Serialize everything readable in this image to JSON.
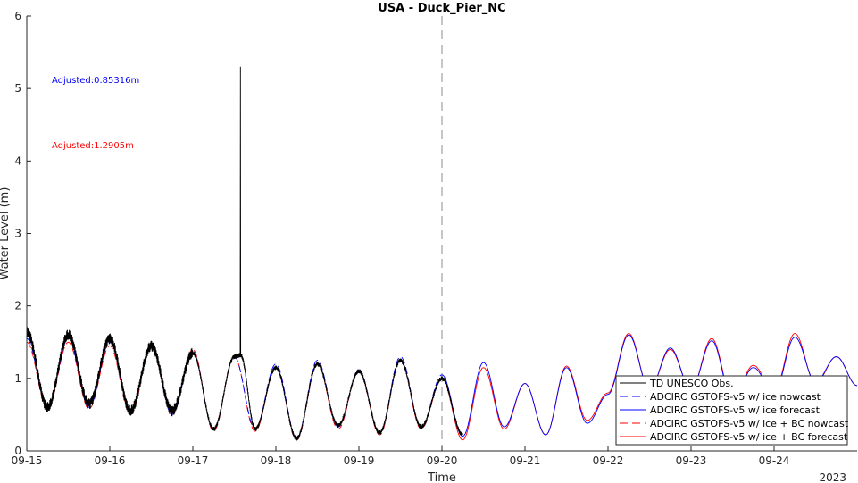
{
  "chart_data": {
    "type": "line",
    "title": "USA - Duck_Pier_NC",
    "xlabel": "Time",
    "ylabel": "Water Level (m)",
    "year_label": "2023",
    "xlim": [
      "2023-09-15",
      "2023-09-25"
    ],
    "ylim": [
      0,
      6
    ],
    "x_tick_labels": [
      "09-15",
      "09-16",
      "09-17",
      "09-18",
      "09-19",
      "09-20",
      "09-21",
      "09-22",
      "09-23",
      "09-24"
    ],
    "y_tick_labels": [
      "0",
      "1",
      "2",
      "3",
      "4",
      "5",
      "6"
    ],
    "nowcast_forecast_divider": "2023-09-20T00:00",
    "grid": false,
    "legend_position": "bottom-right",
    "annotations": [
      {
        "text": "Adjusted:0.85316m",
        "color": "#0000ff"
      },
      {
        "text": "Adjusted:1.2905m",
        "color": "#ff0000"
      }
    ],
    "series": [
      {
        "name": "TD UNESCO Obs.",
        "color": "#000000",
        "style": "solid",
        "x": [
          "2023-09-15T00:00",
          "2023-09-15T06:00",
          "2023-09-15T12:00",
          "2023-09-15T18:00",
          "2023-09-16T00:00",
          "2023-09-16T06:00",
          "2023-09-16T12:00",
          "2023-09-16T18:00",
          "2023-09-17T00:00",
          "2023-09-17T06:00",
          "2023-09-17T12:00",
          "2023-09-17T13:40",
          "2023-09-17T13:45",
          "2023-09-17T13:50",
          "2023-09-17T18:00",
          "2023-09-18T00:00",
          "2023-09-18T06:00",
          "2023-09-18T12:00",
          "2023-09-18T18:00",
          "2023-09-19T00:00",
          "2023-09-19T06:00",
          "2023-09-19T12:00",
          "2023-09-19T18:00",
          "2023-09-20T00:00",
          "2023-09-20T06:00"
        ],
        "y": [
          1.65,
          0.6,
          1.6,
          0.65,
          1.55,
          0.55,
          1.45,
          0.55,
          1.35,
          0.3,
          1.3,
          1.32,
          5.3,
          1.32,
          0.3,
          1.15,
          0.17,
          1.2,
          0.35,
          1.1,
          0.25,
          1.25,
          0.33,
          1.0,
          0.22
        ]
      },
      {
        "name": "ADCIRC GSTOFS-v5 w/ ice nowcast",
        "color": "#0000ff",
        "style": "dashed",
        "x": [
          "2023-09-15T00:00",
          "2023-09-15T06:00",
          "2023-09-15T12:00",
          "2023-09-15T18:00",
          "2023-09-16T00:00",
          "2023-09-16T06:00",
          "2023-09-16T12:00",
          "2023-09-16T18:00",
          "2023-09-17T00:00",
          "2023-09-17T06:00",
          "2023-09-17T12:00",
          "2023-09-17T18:00",
          "2023-09-18T00:00",
          "2023-09-18T06:00",
          "2023-09-18T12:00",
          "2023-09-18T18:00",
          "2023-09-19T00:00",
          "2023-09-19T06:00",
          "2023-09-19T12:00",
          "2023-09-19T18:00",
          "2023-09-20T00:00"
        ],
        "y": [
          1.55,
          0.6,
          1.55,
          0.6,
          1.5,
          0.55,
          1.45,
          0.5,
          1.35,
          0.3,
          1.3,
          0.3,
          1.2,
          0.18,
          1.25,
          0.33,
          1.12,
          0.25,
          1.3,
          0.33,
          1.05
        ]
      },
      {
        "name": "ADCIRC GSTOFS-v5 w/ ice forecast",
        "color": "#0000ff",
        "style": "solid",
        "x": [
          "2023-09-20T00:00",
          "2023-09-20T06:00",
          "2023-09-20T12:00",
          "2023-09-20T18:00",
          "2023-09-21T00:00",
          "2023-09-21T06:00",
          "2023-09-21T12:00",
          "2023-09-21T18:00",
          "2023-09-22T00:00",
          "2023-09-22T06:00",
          "2023-09-22T12:00",
          "2023-09-22T18:00",
          "2023-09-23T00:00",
          "2023-09-23T06:00",
          "2023-09-23T12:00",
          "2023-09-23T18:00",
          "2023-09-24T00:00",
          "2023-09-24T06:00",
          "2023-09-24T12:00",
          "2023-09-24T18:00",
          "2023-09-25T00:00"
        ],
        "y": [
          1.05,
          0.2,
          1.22,
          0.33,
          0.93,
          0.22,
          1.15,
          0.38,
          0.78,
          1.6,
          0.85,
          1.42,
          0.85,
          1.52,
          0.7,
          1.15,
          0.8,
          1.57,
          0.95,
          1.3,
          0.9
        ]
      },
      {
        "name": "ADCIRC GSTOFS-v5 w/ ice + BC nowcast",
        "color": "#ff0000",
        "style": "dashed",
        "x": [
          "2023-09-15T00:00",
          "2023-09-15T06:00",
          "2023-09-15T12:00",
          "2023-09-15T18:00",
          "2023-09-16T00:00",
          "2023-09-16T06:00",
          "2023-09-16T12:00",
          "2023-09-16T18:00",
          "2023-09-17T00:00",
          "2023-09-17T06:00",
          "2023-09-17T12:00",
          "2023-09-17T18:00",
          "2023-09-18T00:00",
          "2023-09-18T06:00",
          "2023-09-18T12:00",
          "2023-09-18T18:00",
          "2023-09-19T00:00",
          "2023-09-19T06:00",
          "2023-09-19T12:00",
          "2023-09-19T18:00",
          "2023-09-20T00:00"
        ],
        "y": [
          1.5,
          0.58,
          1.5,
          0.58,
          1.45,
          0.5,
          1.42,
          0.5,
          1.4,
          0.27,
          1.3,
          0.27,
          1.15,
          0.15,
          1.2,
          0.3,
          1.1,
          0.22,
          1.25,
          0.3,
          1.0
        ]
      },
      {
        "name": "ADCIRC GSTOFS-v5 w/ ice + BC forecast",
        "color": "#ff0000",
        "style": "solid",
        "x": [
          "2023-09-20T00:00",
          "2023-09-20T06:00",
          "2023-09-20T12:00",
          "2023-09-20T18:00",
          "2023-09-21T00:00",
          "2023-09-21T06:00",
          "2023-09-21T12:00",
          "2023-09-21T18:00",
          "2023-09-22T00:00",
          "2023-09-22T06:00",
          "2023-09-22T12:00",
          "2023-09-22T18:00",
          "2023-09-23T00:00",
          "2023-09-23T06:00",
          "2023-09-23T12:00",
          "2023-09-23T18:00",
          "2023-09-24T00:00",
          "2023-09-24T06:00",
          "2023-09-24T12:00",
          "2023-09-24T18:00",
          "2023-09-25T00:00"
        ],
        "y": [
          1.0,
          0.15,
          1.15,
          0.3,
          0.93,
          0.22,
          1.17,
          0.42,
          0.8,
          1.62,
          0.85,
          1.4,
          0.85,
          1.55,
          0.72,
          1.18,
          0.82,
          1.62,
          0.93,
          1.3,
          0.9
        ]
      }
    ]
  }
}
